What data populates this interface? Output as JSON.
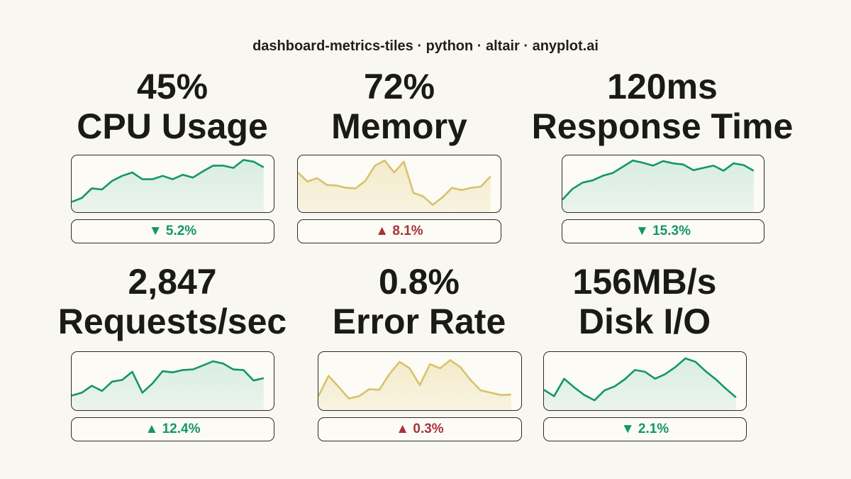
{
  "page_title": "dashboard-metrics-tiles · python · altair · anyplot.ai",
  "colors": {
    "background": "#f9f7f1",
    "good_line": "#12966b",
    "good_fill": "#d6ece2",
    "warn_line": "#d8c26c",
    "warn_fill": "#f2eac7",
    "good_text": "#12966b",
    "bad_text": "#a8323a"
  },
  "tiles": [
    {
      "value": "45%",
      "label": "CPU Usage",
      "delta": "▼ 5.2%",
      "delta_status": "good",
      "spark_color": "green"
    },
    {
      "value": "72%",
      "label": "Memory",
      "delta": "▲ 8.1%",
      "delta_status": "bad",
      "spark_color": "yellow"
    },
    {
      "value": "120ms",
      "label": "Response Time",
      "delta": "▼ 15.3%",
      "delta_status": "good",
      "spark_color": "green"
    },
    {
      "value": "2,847",
      "label": "Requests/sec",
      "delta": "▲ 12.4%",
      "delta_status": "good",
      "spark_color": "green"
    },
    {
      "value": "0.8%",
      "label": "Error Rate",
      "delta": "▲ 0.3%",
      "delta_status": "bad",
      "spark_color": "yellow"
    },
    {
      "value": "156MB/s",
      "label": "Disk I/O",
      "delta": "▼ 2.1%",
      "delta_status": "good",
      "spark_color": "green"
    }
  ],
  "chart_data": [
    {
      "type": "area",
      "name": "CPU Usage sparkline",
      "values": [
        0.18,
        0.25,
        0.42,
        0.4,
        0.55,
        0.64,
        0.7,
        0.58,
        0.58,
        0.64,
        0.58,
        0.66,
        0.61,
        0.72,
        0.82,
        0.82,
        0.78,
        0.92,
        0.89,
        0.79
      ]
    },
    {
      "type": "area",
      "name": "Memory sparkline",
      "values": [
        0.7,
        0.54,
        0.6,
        0.48,
        0.47,
        0.43,
        0.42,
        0.55,
        0.82,
        0.91,
        0.7,
        0.89,
        0.34,
        0.28,
        0.13,
        0.26,
        0.43,
        0.39,
        0.43,
        0.45,
        0.63
      ]
    },
    {
      "type": "area",
      "name": "Response Time sparkline",
      "values": [
        0.22,
        0.41,
        0.52,
        0.56,
        0.64,
        0.69,
        0.8,
        0.91,
        0.87,
        0.82,
        0.9,
        0.86,
        0.84,
        0.74,
        0.78,
        0.82,
        0.73,
        0.86,
        0.83,
        0.73
      ]
    },
    {
      "type": "area",
      "name": "Requests/sec sparkline",
      "values": [
        0.25,
        0.3,
        0.42,
        0.33,
        0.49,
        0.52,
        0.66,
        0.3,
        0.46,
        0.67,
        0.65,
        0.69,
        0.7,
        0.77,
        0.84,
        0.8,
        0.7,
        0.69,
        0.51,
        0.55
      ]
    },
    {
      "type": "area",
      "name": "Error Rate sparkline",
      "values": [
        0.24,
        0.59,
        0.4,
        0.2,
        0.24,
        0.36,
        0.35,
        0.62,
        0.83,
        0.72,
        0.43,
        0.79,
        0.72,
        0.86,
        0.74,
        0.52,
        0.34,
        0.3,
        0.26,
        0.27
      ]
    },
    {
      "type": "area",
      "name": "Disk I/O sparkline",
      "values": [
        0.35,
        0.24,
        0.54,
        0.39,
        0.26,
        0.17,
        0.34,
        0.41,
        0.53,
        0.69,
        0.66,
        0.54,
        0.62,
        0.74,
        0.89,
        0.83,
        0.67,
        0.53,
        0.37,
        0.22
      ]
    }
  ]
}
